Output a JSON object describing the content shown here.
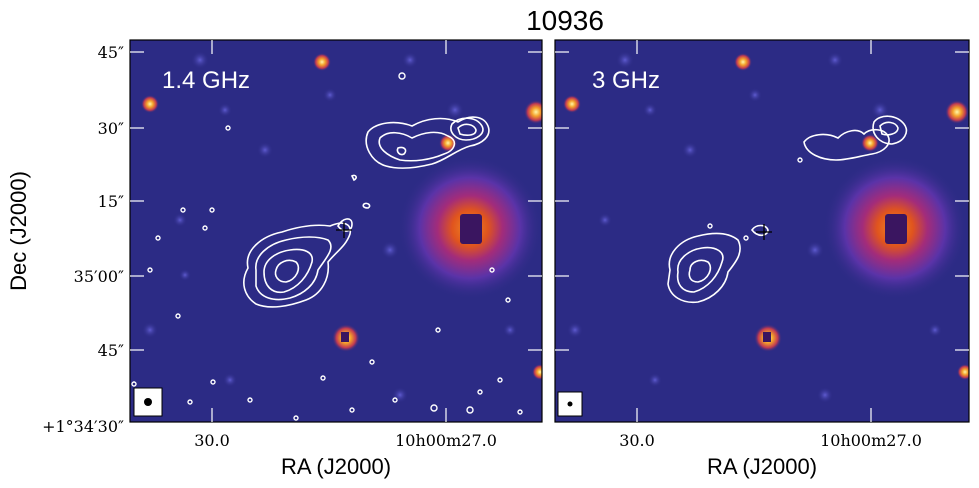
{
  "figure": {
    "title": "10936",
    "xlabel": "RA (J2000)",
    "ylabel": "Dec (J2000)",
    "panels": [
      {
        "label": "1.4 GHz",
        "xticks": [
          "30.0",
          "10h00m27.0"
        ],
        "yticks": [
          "45″",
          "30″",
          "15″",
          "35′00″",
          "45″",
          "+1°34′30″"
        ]
      },
      {
        "label": "3 GHz",
        "xticks": [
          "30.0",
          "10h00m27.0"
        ]
      }
    ],
    "colors": {
      "background": "#2c2b85",
      "contour": "#ffffff",
      "source_core": "#3a1560",
      "source_ring": "#f0701e",
      "source_glow": "#b02e7c"
    }
  }
}
